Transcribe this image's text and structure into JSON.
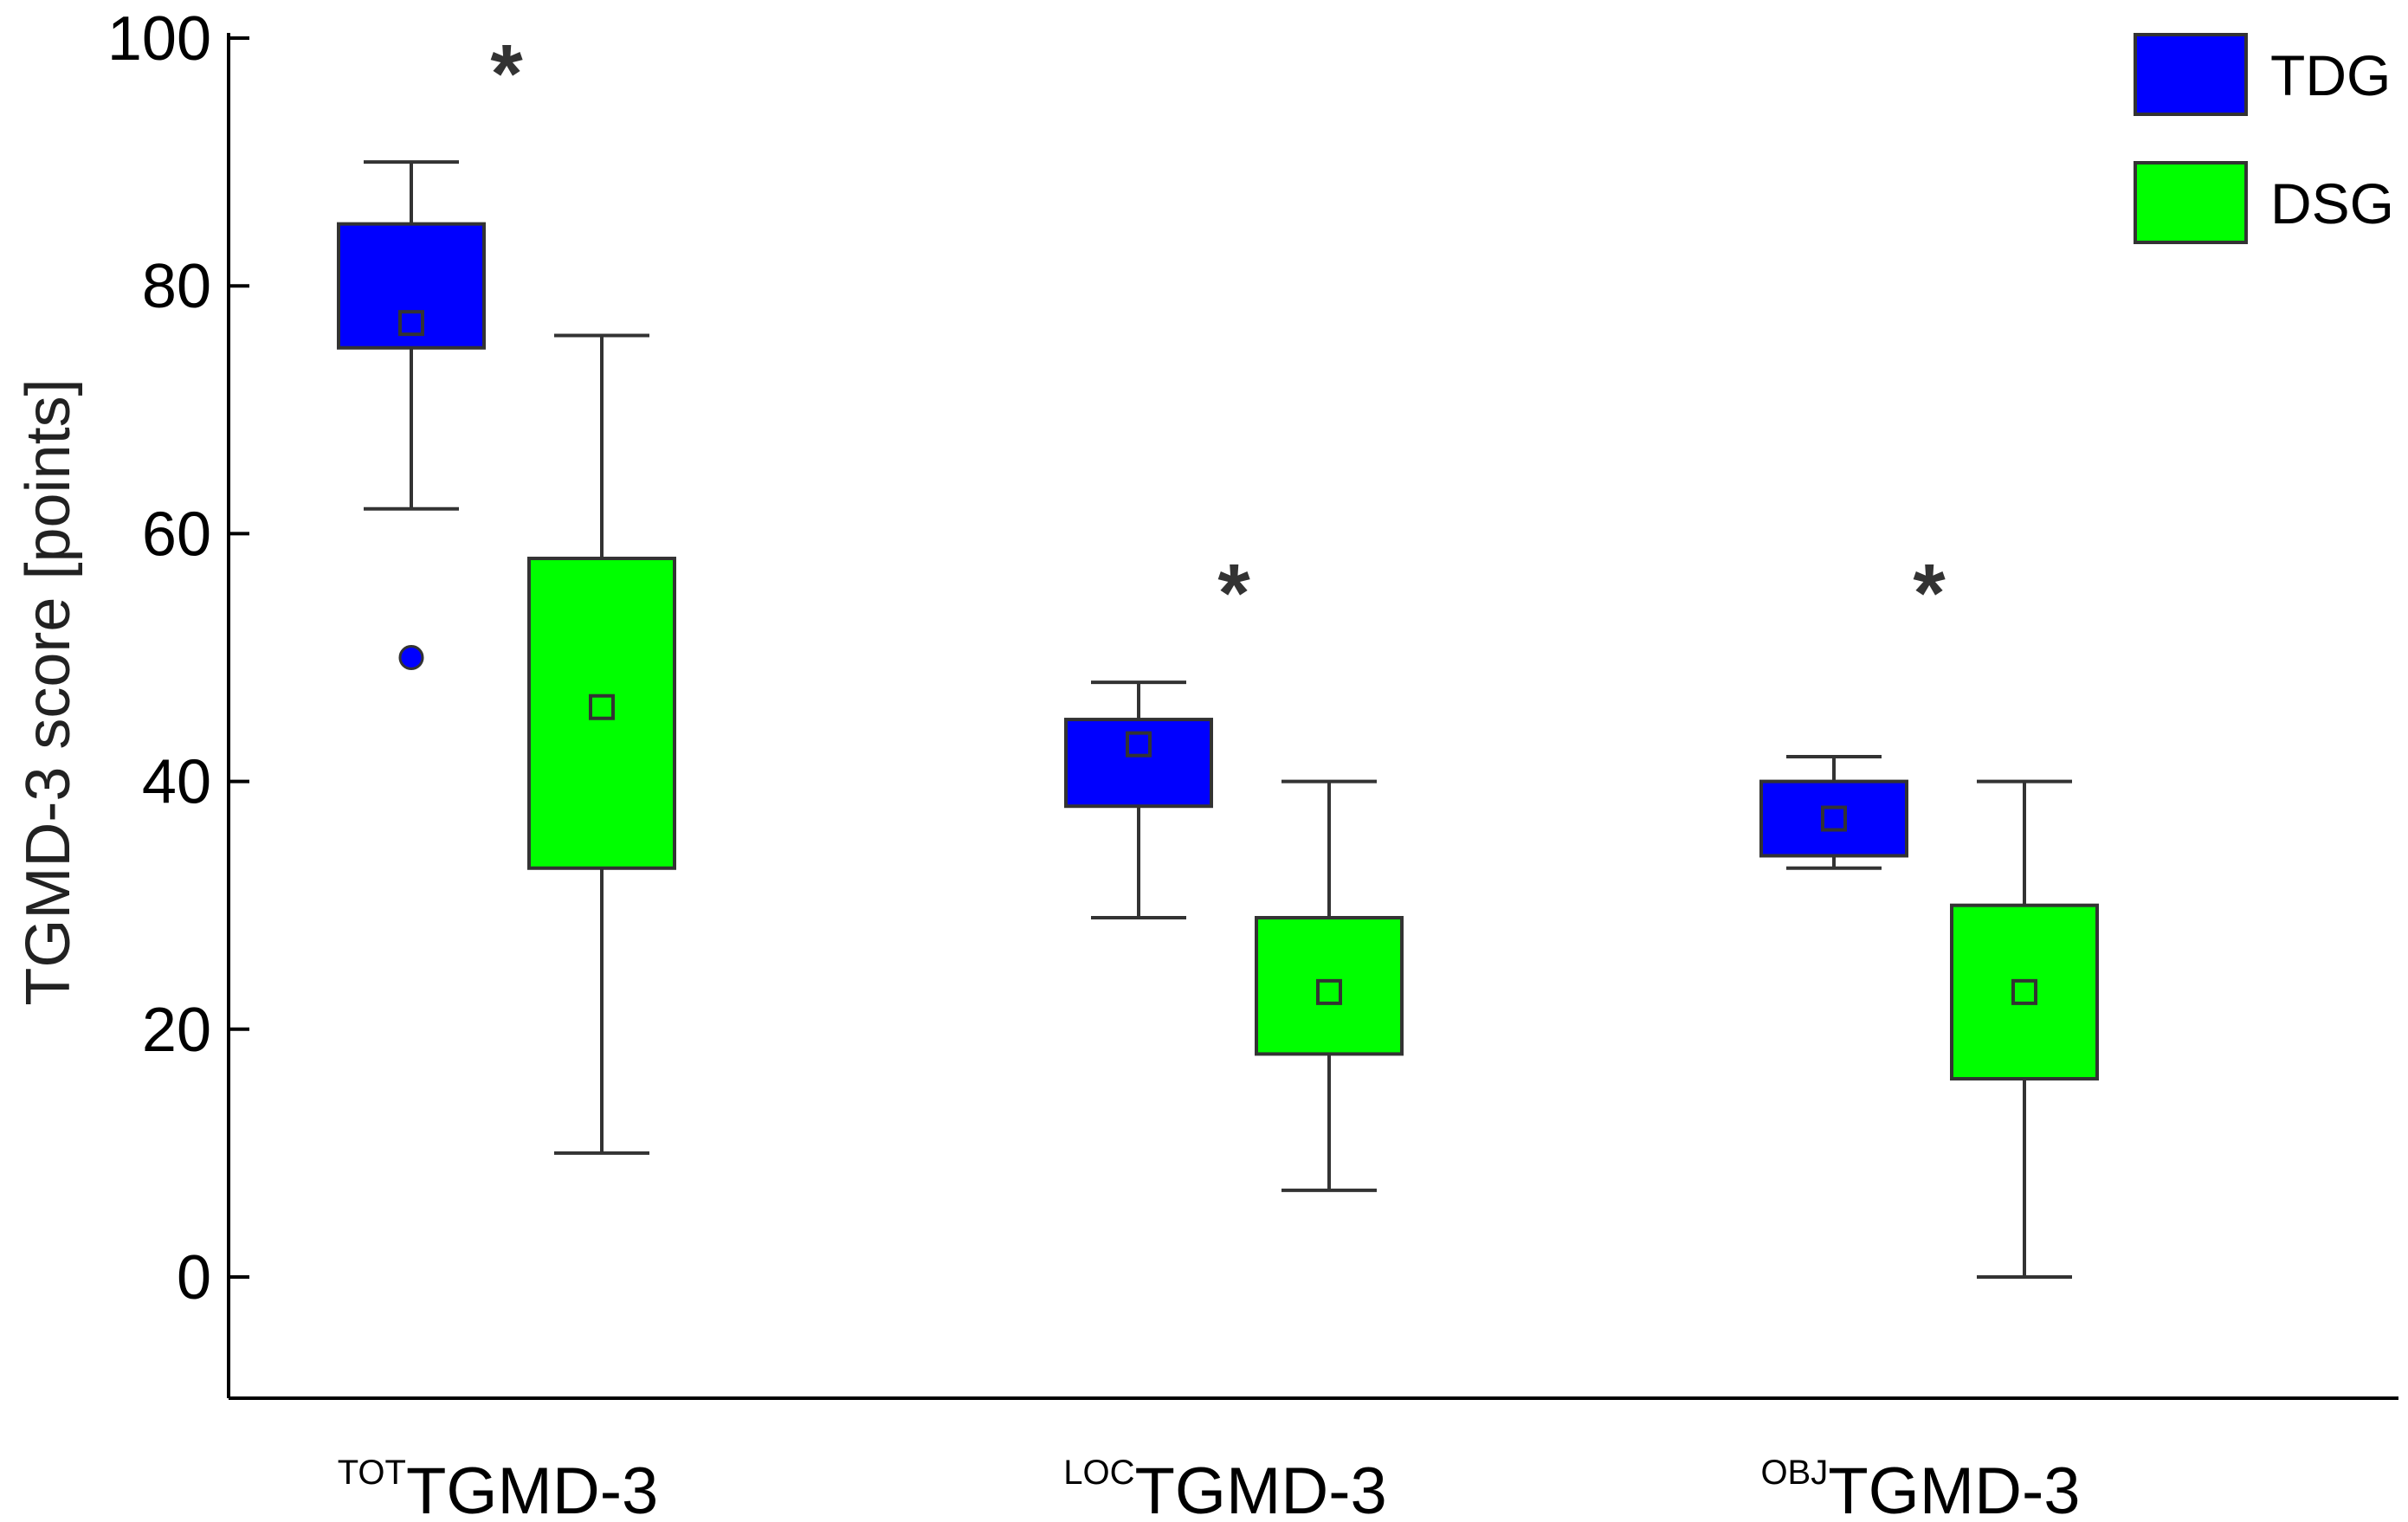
{
  "chart_data": {
    "type": "box",
    "ylabel": "TGMD-3 score [points]",
    "ylim": [
      -10,
      100
    ],
    "yticks": [
      0,
      20,
      40,
      60,
      80,
      100
    ],
    "legend_position": "top-right",
    "series": [
      {
        "name": "TDG",
        "color": "#0000ff"
      },
      {
        "name": "DSG",
        "color": "#00ff00"
      }
    ],
    "categories": [
      {
        "sup": "TOT",
        "name": "TGMD-3",
        "significance": "*",
        "groups": [
          {
            "series": "TDG",
            "whisker_low": 62,
            "q1": 75,
            "q3": 85,
            "whisker_high": 90,
            "mean": 77,
            "outliers": [
              50
            ]
          },
          {
            "series": "DSG",
            "whisker_low": 10,
            "q1": 33,
            "q3": 58,
            "whisker_high": 76,
            "mean": 46,
            "outliers": []
          }
        ]
      },
      {
        "sup": "LOC",
        "name": "TGMD-3",
        "significance": "*",
        "groups": [
          {
            "series": "TDG",
            "whisker_low": 29,
            "q1": 38,
            "q3": 45,
            "whisker_high": 48,
            "mean": 43,
            "outliers": []
          },
          {
            "series": "DSG",
            "whisker_low": 7,
            "q1": 18,
            "q3": 29,
            "whisker_high": 40,
            "mean": 23,
            "outliers": []
          }
        ]
      },
      {
        "sup": "OBJ",
        "name": "TGMD-3",
        "significance": "*",
        "groups": [
          {
            "series": "TDG",
            "whisker_low": 33,
            "q1": 34,
            "q3": 40,
            "whisker_high": 42,
            "mean": 37,
            "outliers": []
          },
          {
            "series": "DSG",
            "whisker_low": 0,
            "q1": 16,
            "q3": 30,
            "whisker_high": 40,
            "mean": 23,
            "outliers": []
          }
        ]
      }
    ]
  }
}
